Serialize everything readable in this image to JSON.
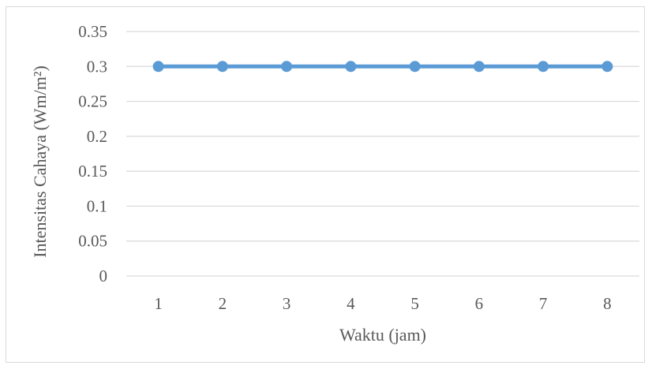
{
  "chart_data": {
    "type": "line",
    "title": "",
    "xlabel": "Waktu (jam)",
    "ylabel": "Intensitas Cahaya (Wm/m²)",
    "categories": [
      "1",
      "2",
      "3",
      "4",
      "5",
      "6",
      "7",
      "8"
    ],
    "series": [
      {
        "values": [
          0.3,
          0.3,
          0.3,
          0.3,
          0.3,
          0.3,
          0.3,
          0.3
        ],
        "color": "#5b9bd5"
      }
    ],
    "ylim": [
      0,
      0.35
    ],
    "yticks": [
      "0",
      "0.05",
      "0.1",
      "0.15",
      "0.2",
      "0.25",
      "0.3",
      "0.35"
    ],
    "grid": true,
    "legend": "none",
    "gridColor": "#d9d9d9",
    "textColor": "#595959"
  }
}
